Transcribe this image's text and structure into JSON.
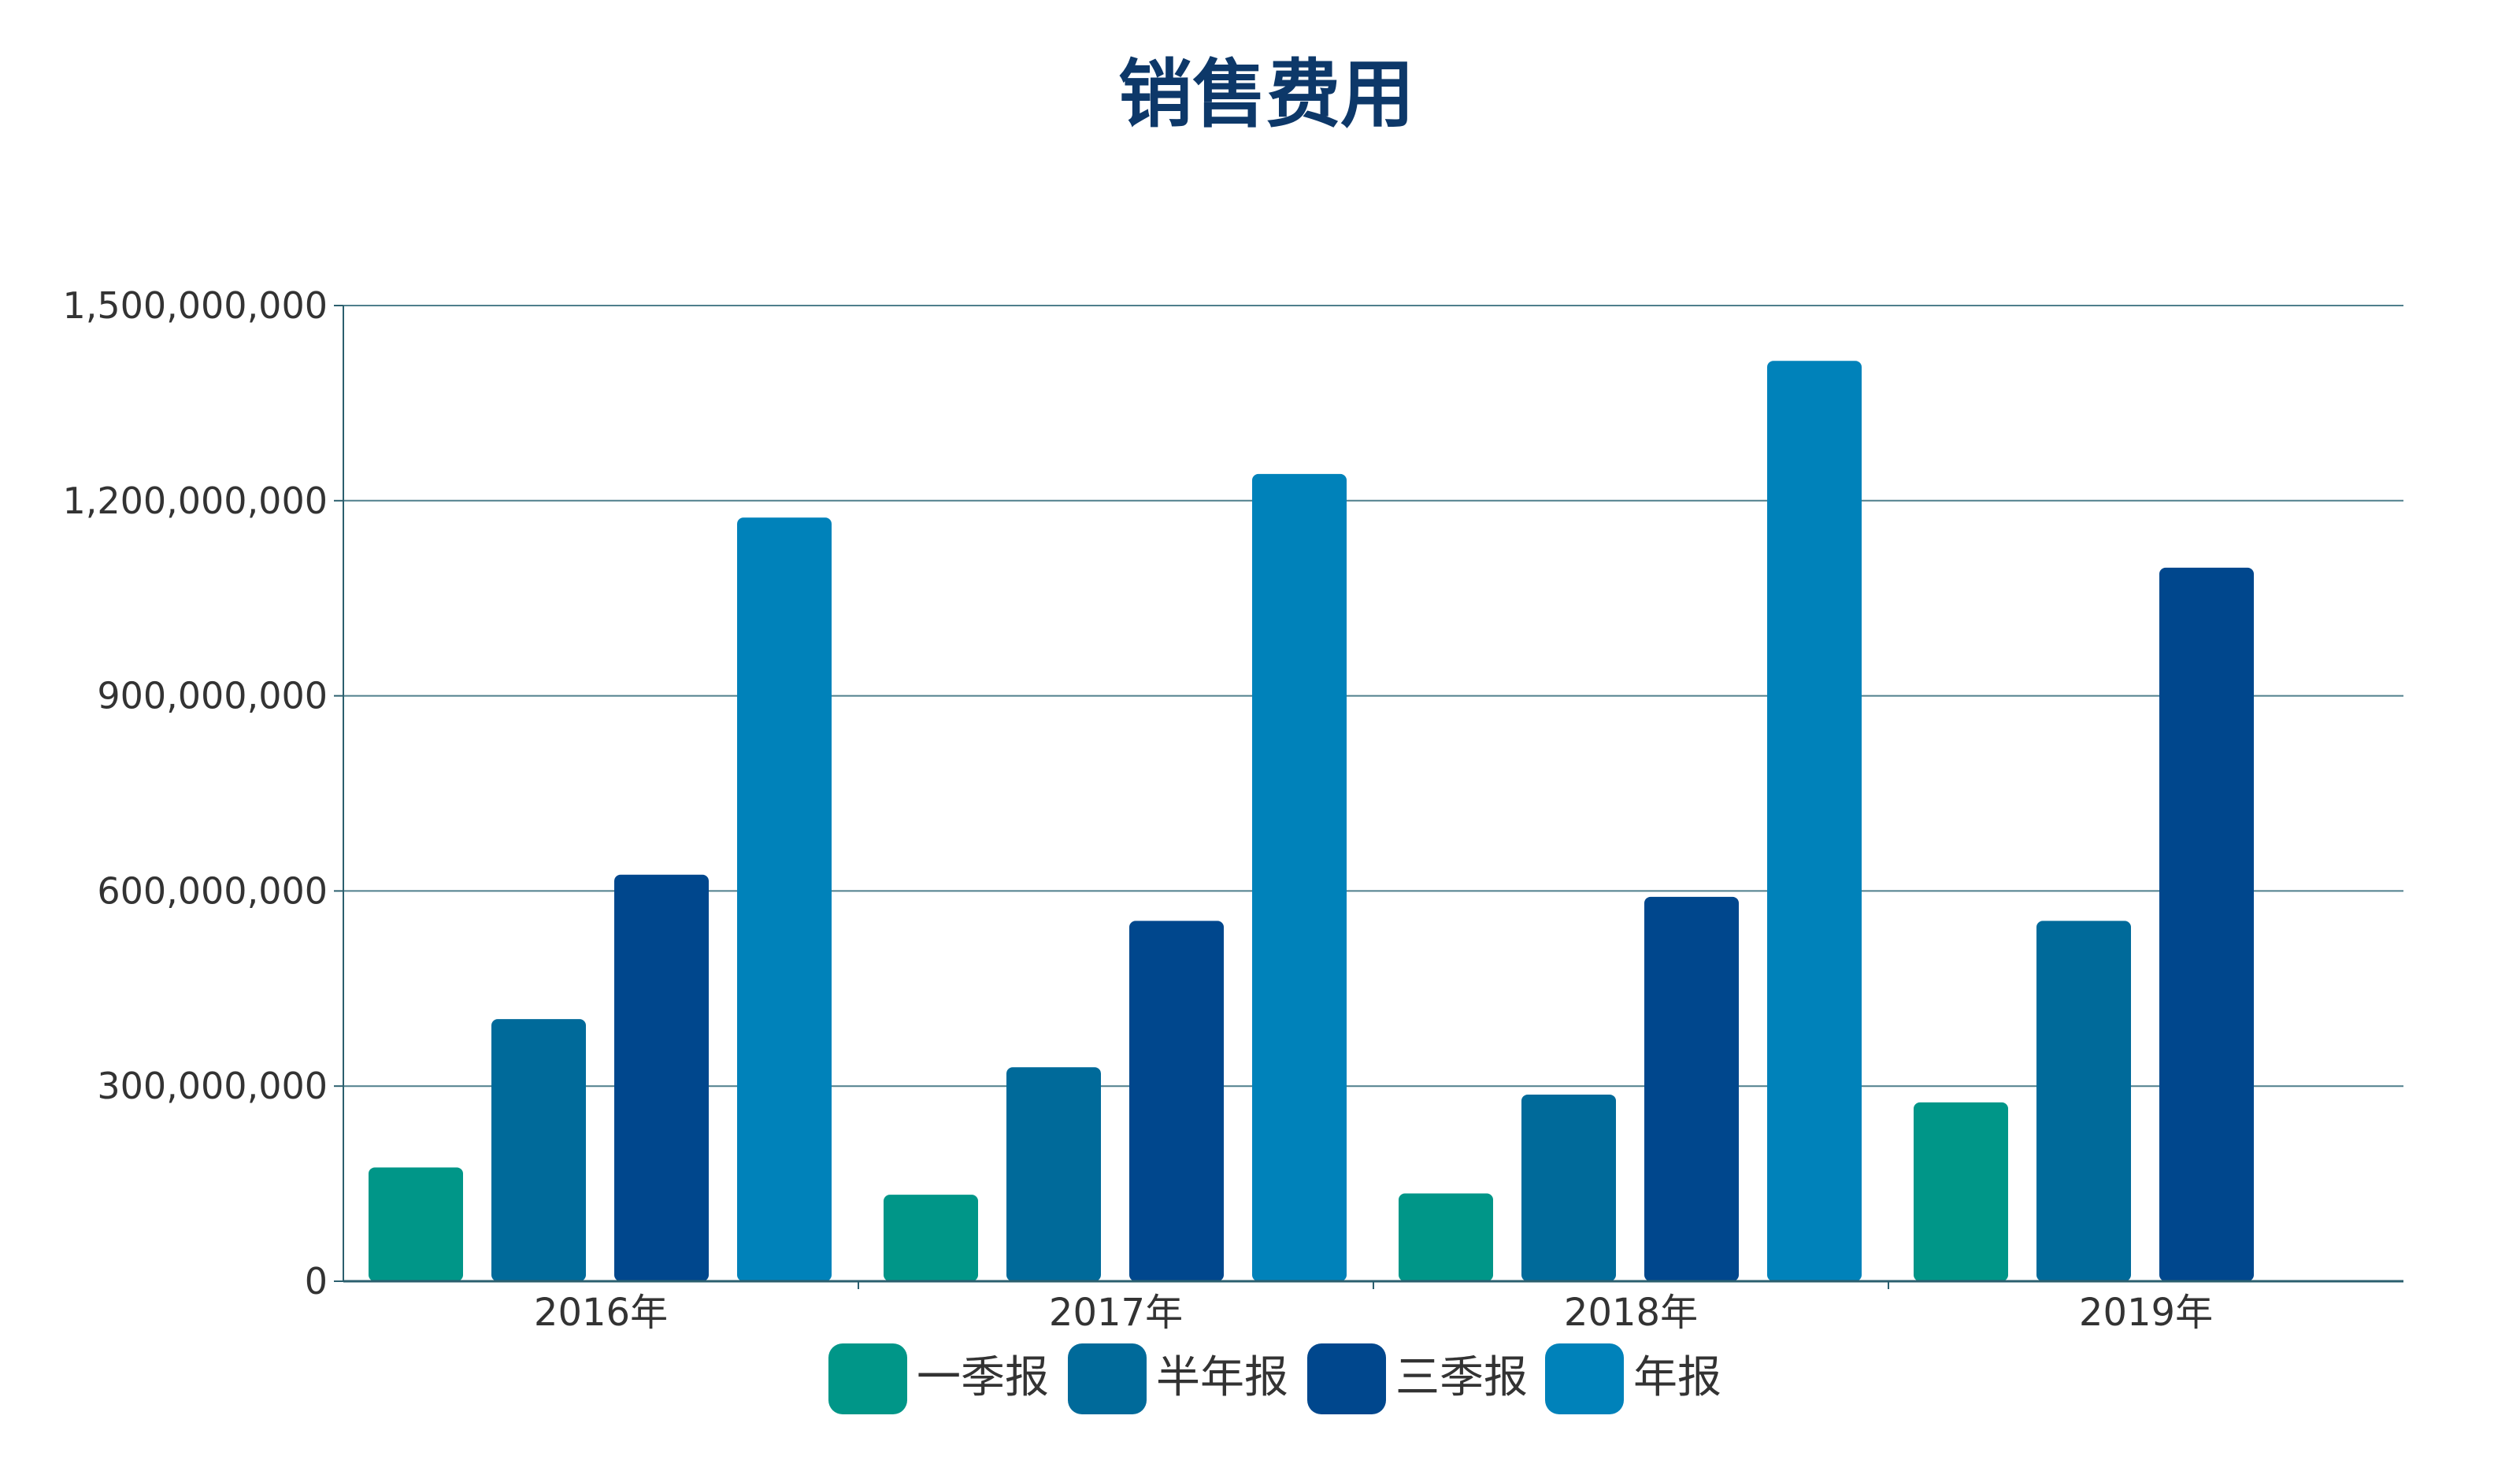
{
  "chart_data": {
    "type": "bar",
    "title": "销售费用",
    "xlabel": "",
    "ylabel": "",
    "categories": [
      "2016年",
      "2017年",
      "2018年",
      "2019年"
    ],
    "series": [
      {
        "name": "一季报",
        "color": "#009688",
        "values": [
          175000000,
          133000000,
          135000000,
          275000000
        ]
      },
      {
        "name": "半年报",
        "color": "#006a9a",
        "values": [
          403000000,
          329000000,
          287000000,
          554000000
        ]
      },
      {
        "name": "三季报",
        "color": "#00478d",
        "values": [
          625000000,
          554000000,
          591000000,
          1097000000
        ]
      },
      {
        "name": "年报",
        "color": "#0082ba",
        "values": [
          1174000000,
          1241000000,
          1415000000,
          null
        ]
      }
    ],
    "ylim": [
      0,
      1500000000
    ],
    "yticks": [
      "0",
      "300,000,000",
      "600,000,000",
      "900,000,000",
      "1,200,000,000",
      "1,500,000,000"
    ],
    "ytick_values": [
      0,
      300000000,
      600000000,
      900000000,
      1200000000,
      1500000000
    ],
    "grid": true,
    "legend_position": "bottom-center"
  },
  "colors": {
    "title": "#0d3869",
    "grid": "#4f7f8c",
    "axis": "#2b5f6e",
    "text": "#333333"
  }
}
